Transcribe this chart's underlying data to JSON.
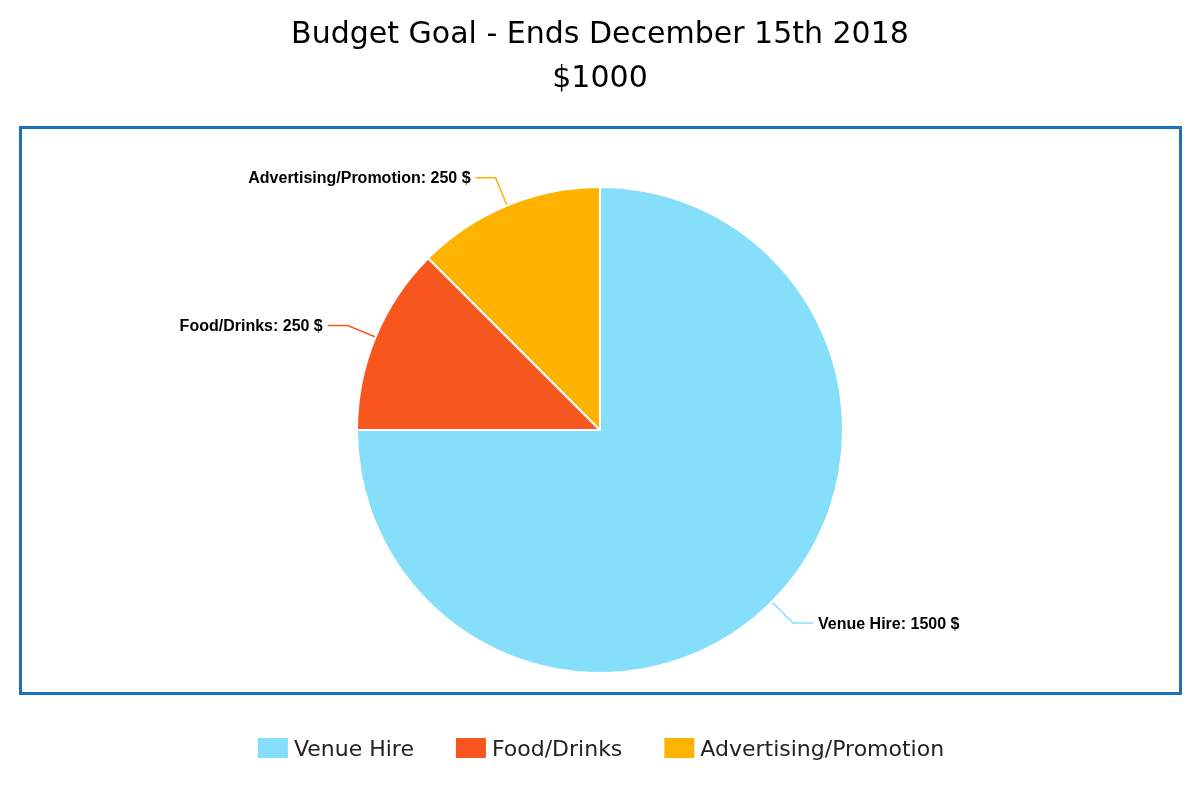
{
  "chart_data": {
    "type": "pie",
    "title": "Budget Goal - Ends December 15th 2018",
    "subtitle": "$1000",
    "categories": [
      "Venue Hire",
      "Food/Drinks",
      "Advertising/Promotion"
    ],
    "values": [
      1500,
      250,
      250
    ],
    "colors": [
      "#85dffa",
      "#f7561e",
      "#fdb300"
    ],
    "value_labels": [
      "Venue Hire: 1500 $",
      "Food/Drinks: 250 $",
      "Advertising/Promotion: 250 $"
    ],
    "legend": "bottom"
  }
}
